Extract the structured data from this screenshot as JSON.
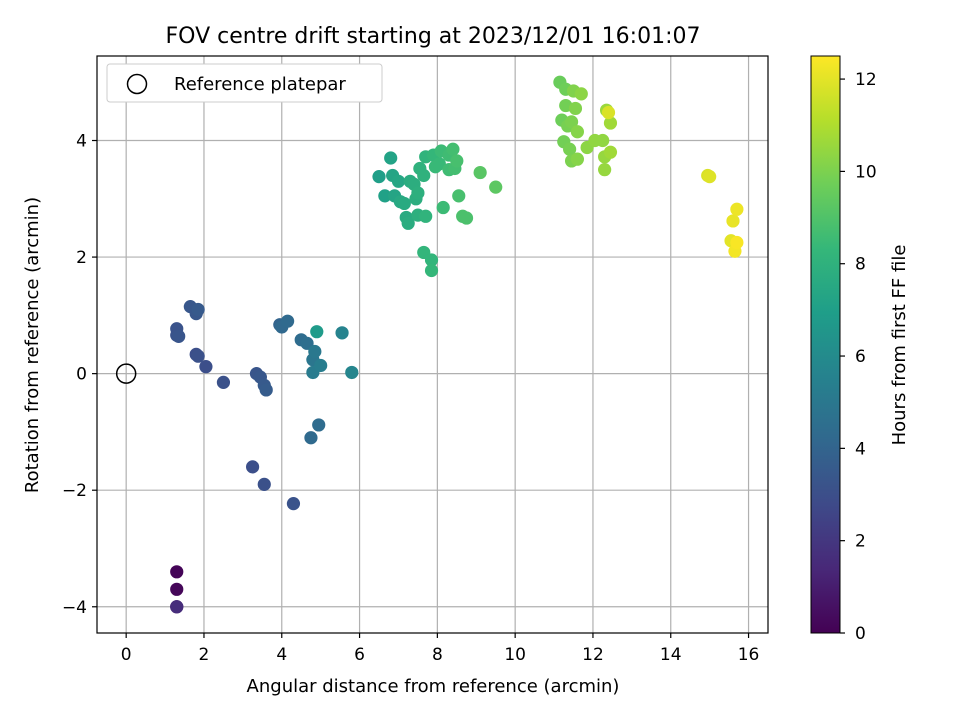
{
  "chart_data": {
    "type": "scatter",
    "title": "FOV centre drift starting at 2023/12/01 16:01:07",
    "xlabel": "Angular distance from reference (arcmin)",
    "ylabel": "Rotation from reference (arcmin)",
    "xlim": [
      -0.75,
      16.5
    ],
    "ylim": [
      -4.45,
      5.45
    ],
    "xticks": [
      0,
      2,
      4,
      6,
      8,
      10,
      12,
      14,
      16
    ],
    "xtick_labels": [
      "0",
      "2",
      "4",
      "6",
      "8",
      "10",
      "12",
      "14",
      "16"
    ],
    "yticks": [
      -4,
      -2,
      0,
      2,
      4
    ],
    "ytick_labels": [
      "−4",
      "−2",
      "0",
      "2",
      "4"
    ],
    "grid": true,
    "legend": {
      "placement": "top-left",
      "entries": [
        "Reference platepar"
      ]
    },
    "reference_point": {
      "x": 0,
      "y": 0,
      "marker": "open-circle"
    },
    "colorbar": {
      "label": "Hours from first FF file",
      "colormap": "viridis",
      "range": [
        0,
        12.5
      ],
      "ticks": [
        0,
        2,
        4,
        6,
        8,
        10,
        12
      ],
      "tick_labels": [
        "0",
        "2",
        "4",
        "6",
        "8",
        "10",
        "12"
      ]
    },
    "points": [
      [
        1.3,
        -3.4,
        0.1
      ],
      [
        1.3,
        -3.7,
        0.2
      ],
      [
        1.3,
        -4.0,
        0.5
      ],
      [
        1.3,
        -4.0,
        1.6
      ],
      [
        3.25,
        -1.6,
        3.0
      ],
      [
        3.55,
        -1.9,
        3.1
      ],
      [
        4.3,
        -2.23,
        3.2
      ],
      [
        1.3,
        0.77,
        3.2
      ],
      [
        1.3,
        0.66,
        3.2
      ],
      [
        1.35,
        0.64,
        3.3
      ],
      [
        1.65,
        1.15,
        3.4
      ],
      [
        1.8,
        1.03,
        3.4
      ],
      [
        1.85,
        1.1,
        3.5
      ],
      [
        1.8,
        0.33,
        3.0
      ],
      [
        1.85,
        0.3,
        3.1
      ],
      [
        2.05,
        0.12,
        3.0
      ],
      [
        2.5,
        -0.15,
        3.1
      ],
      [
        3.35,
        0.0,
        3.3
      ],
      [
        3.45,
        -0.06,
        3.4
      ],
      [
        3.55,
        -0.2,
        3.5
      ],
      [
        3.6,
        -0.28,
        3.6
      ],
      [
        3.95,
        0.84,
        4.0
      ],
      [
        4.0,
        0.8,
        4.2
      ],
      [
        4.15,
        0.9,
        4.3
      ],
      [
        4.5,
        0.58,
        4.4
      ],
      [
        4.65,
        0.52,
        4.5
      ],
      [
        4.75,
        -1.1,
        4.3
      ],
      [
        4.95,
        -0.88,
        4.4
      ],
      [
        4.8,
        0.24,
        4.9
      ],
      [
        4.85,
        0.38,
        5.0
      ],
      [
        4.8,
        0.02,
        5.2
      ],
      [
        5.0,
        0.14,
        5.3
      ],
      [
        4.9,
        0.72,
        6.8
      ],
      [
        5.55,
        0.7,
        5.6
      ],
      [
        5.8,
        0.02,
        5.7
      ],
      [
        6.5,
        3.38,
        7.0
      ],
      [
        6.65,
        3.05,
        7.1
      ],
      [
        6.8,
        3.7,
        7.2
      ],
      [
        6.85,
        3.4,
        7.3
      ],
      [
        6.9,
        3.05,
        7.3
      ],
      [
        7.0,
        3.3,
        7.4
      ],
      [
        7.05,
        2.95,
        7.5
      ],
      [
        7.15,
        2.92,
        7.6
      ],
      [
        7.2,
        2.68,
        7.6
      ],
      [
        7.25,
        2.58,
        7.7
      ],
      [
        7.3,
        3.3,
        7.7
      ],
      [
        7.4,
        3.25,
        7.8
      ],
      [
        7.45,
        3.0,
        7.8
      ],
      [
        7.5,
        3.1,
        7.9
      ],
      [
        7.5,
        2.72,
        7.9
      ],
      [
        7.55,
        3.52,
        8.0
      ],
      [
        7.65,
        3.4,
        8.0
      ],
      [
        7.7,
        3.72,
        8.1
      ],
      [
        7.7,
        2.7,
        8.1
      ],
      [
        7.65,
        2.08,
        8.2
      ],
      [
        7.85,
        1.95,
        8.2
      ],
      [
        7.85,
        1.77,
        8.3
      ],
      [
        7.9,
        3.75,
        8.3
      ],
      [
        7.95,
        3.55,
        8.4
      ],
      [
        8.05,
        3.6,
        8.4
      ],
      [
        8.1,
        3.82,
        8.5
      ],
      [
        8.15,
        2.85,
        8.5
      ],
      [
        8.3,
        3.75,
        8.6
      ],
      [
        8.3,
        3.5,
        8.6
      ],
      [
        8.4,
        3.85,
        8.7
      ],
      [
        8.45,
        3.52,
        8.7
      ],
      [
        8.5,
        3.65,
        8.8
      ],
      [
        8.55,
        3.05,
        8.8
      ],
      [
        8.65,
        2.7,
        8.9
      ],
      [
        8.75,
        2.67,
        8.9
      ],
      [
        9.1,
        3.45,
        9.2
      ],
      [
        9.5,
        3.2,
        9.3
      ],
      [
        11.15,
        5.0,
        9.6
      ],
      [
        11.2,
        4.35,
        9.7
      ],
      [
        11.3,
        4.88,
        9.7
      ],
      [
        11.3,
        4.6,
        9.8
      ],
      [
        11.25,
        3.98,
        9.8
      ],
      [
        11.35,
        4.25,
        9.9
      ],
      [
        11.4,
        3.85,
        9.9
      ],
      [
        11.45,
        4.32,
        10.0
      ],
      [
        11.45,
        3.65,
        10.0
      ],
      [
        11.5,
        4.85,
        10.1
      ],
      [
        11.55,
        4.55,
        10.1
      ],
      [
        11.6,
        4.15,
        10.2
      ],
      [
        11.6,
        3.68,
        10.2
      ],
      [
        11.7,
        4.8,
        10.3
      ],
      [
        11.85,
        3.88,
        10.3
      ],
      [
        12.05,
        4.0,
        10.4
      ],
      [
        12.25,
        4.0,
        10.4
      ],
      [
        12.3,
        3.72,
        10.5
      ],
      [
        12.3,
        3.5,
        10.5
      ],
      [
        12.35,
        4.52,
        10.6
      ],
      [
        12.45,
        3.8,
        10.7
      ],
      [
        12.45,
        4.3,
        10.7
      ],
      [
        12.4,
        4.48,
        11.8
      ],
      [
        14.95,
        3.4,
        11.8
      ],
      [
        15.0,
        3.38,
        11.9
      ],
      [
        15.55,
        2.28,
        12.0
      ],
      [
        15.6,
        2.62,
        12.1
      ],
      [
        15.7,
        2.82,
        12.2
      ],
      [
        15.65,
        2.1,
        12.3
      ],
      [
        15.7,
        2.25,
        12.4
      ]
    ]
  }
}
